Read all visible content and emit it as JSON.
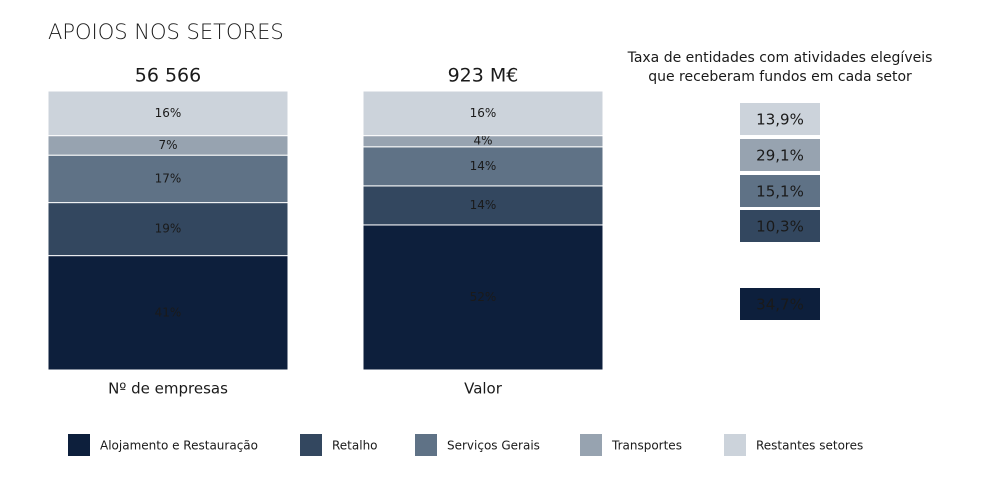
{
  "chart_data": {
    "type": "stacked_bar_100",
    "title": "APOIOS NOS SETORES",
    "categories": [
      "Nº de empresas",
      "Valor"
    ],
    "totals": [
      "56 566",
      "923 M€"
    ],
    "ylim": [
      0,
      100
    ],
    "rate_title": [
      "Taxa de entidades com atividades elegíveis",
      "que receberam fundos em cada setor"
    ],
    "series": [
      {
        "name": "Alojamento e Restauração",
        "color": "#0d1f3c",
        "values": [
          41,
          52
        ],
        "value_labels": [
          "41%",
          "52%"
        ],
        "rate": 34.7,
        "rate_label": "34,7%"
      },
      {
        "name": "Retalho",
        "color": "#33475f",
        "values": [
          19,
          14
        ],
        "value_labels": [
          "19%",
          "14%"
        ],
        "rate": 10.3,
        "rate_label": "10,3%"
      },
      {
        "name": "Serviços Gerais",
        "color": "#5f7286",
        "values": [
          17,
          14
        ],
        "value_labels": [
          "17%",
          "14%"
        ],
        "rate": 15.1,
        "rate_label": "15,1%"
      },
      {
        "name": "Transportes",
        "color": "#97a3b0",
        "values": [
          7,
          4
        ],
        "value_labels": [
          "7%",
          "4%"
        ],
        "rate": 29.1,
        "rate_label": "29,1%"
      },
      {
        "name": "Restantes setores",
        "color": "#ccd3db",
        "values": [
          16,
          16
        ],
        "value_labels": [
          "16%",
          "16%"
        ],
        "rate": 13.9,
        "rate_label": "13,9%"
      }
    ]
  }
}
